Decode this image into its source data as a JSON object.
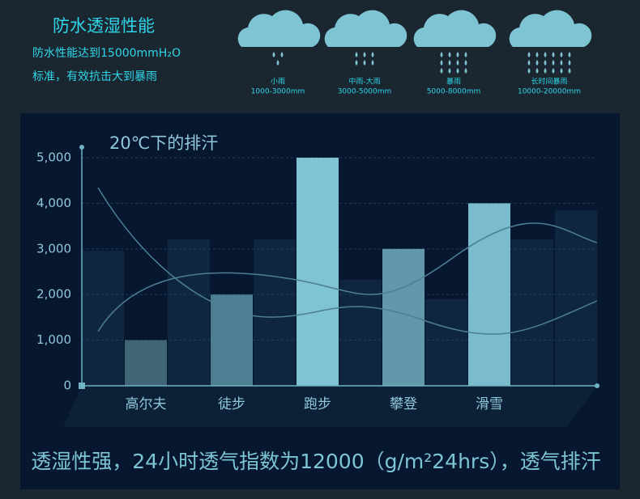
{
  "header": {
    "title": "防水透湿性能",
    "lines": [
      "防水性能达到15000mmH₂O",
      "标准，有效抗击大到暴雨"
    ]
  },
  "rain_levels": [
    {
      "name": "小雨",
      "range": "1000-3000mm"
    },
    {
      "name": "中雨-大雨",
      "range": "3000-5000mm"
    },
    {
      "name": "暴雨",
      "range": "5000-8000mm"
    },
    {
      "name": "长时间暴雨",
      "range": "10000-20000mm"
    }
  ],
  "chart_data": {
    "type": "bar",
    "title": "20℃下的排汗",
    "categories": [
      "高尔夫",
      "徒步",
      "跑步",
      "攀登",
      "滑雪"
    ],
    "values": [
      1000,
      2000,
      5000,
      3000,
      4000
    ],
    "colors": [
      "#3f6577",
      "#4d7f92",
      "#7ec4d2",
      "#6199aa",
      "#7abccb"
    ],
    "ylim": [
      0,
      5230
    ],
    "yticks": [
      0,
      {
        "value": 1000,
        "label": "1,000"
      },
      {
        "value": 2000,
        "label": "2,000"
      },
      {
        "value": 3000,
        "label": "3,000"
      },
      {
        "value": 4000,
        "label": "4,000"
      },
      {
        "value": 5000,
        "label": "5,000"
      }
    ],
    "grid": true
  },
  "footer": "透湿性强，24小时透气指数为12000（g/m²24hrs），透气排汗"
}
